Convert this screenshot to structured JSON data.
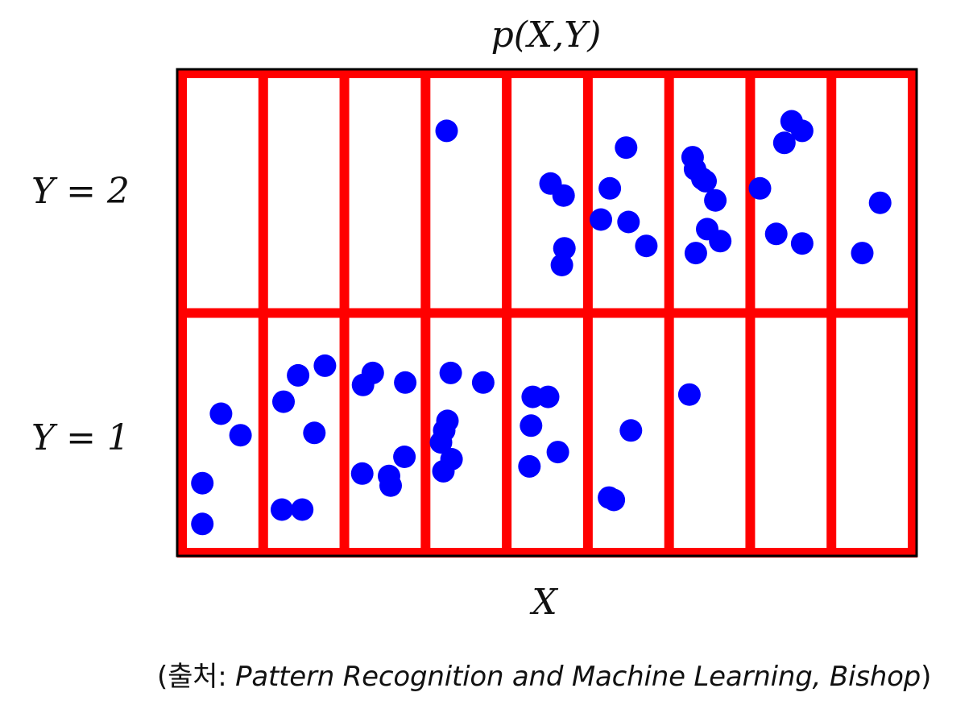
{
  "title": "p(X,Y)",
  "x_label": "X",
  "row_labels": [
    "Y = 2",
    "Y = 1"
  ],
  "caption": {
    "open": "(",
    "prefix": "출처: ",
    "source": "Pattern Recognition and Machine Learning, Bishop",
    "close": ")"
  },
  "colors": {
    "grid": "#ff0000",
    "points": "#0000ff",
    "frame": "#000000"
  },
  "grid": {
    "columns": 9,
    "rows": 2
  },
  "points": [
    {
      "x": 0.48,
      "y": 1.58
    },
    {
      "x": 0.25,
      "y": 1.29
    },
    {
      "x": 0.72,
      "y": 1.49
    },
    {
      "x": 0.25,
      "y": 1.12
    },
    {
      "x": 1.43,
      "y": 1.74
    },
    {
      "x": 1.76,
      "y": 1.78
    },
    {
      "x": 1.25,
      "y": 1.63
    },
    {
      "x": 1.63,
      "y": 1.5
    },
    {
      "x": 1.23,
      "y": 1.18
    },
    {
      "x": 1.48,
      "y": 1.18
    },
    {
      "x": 2.35,
      "y": 1.75
    },
    {
      "x": 2.23,
      "y": 1.7
    },
    {
      "x": 2.75,
      "y": 1.71
    },
    {
      "x": 2.74,
      "y": 1.4
    },
    {
      "x": 2.22,
      "y": 1.33
    },
    {
      "x": 2.55,
      "y": 1.32
    },
    {
      "x": 2.57,
      "y": 1.28
    },
    {
      "x": 3.31,
      "y": 1.75
    },
    {
      "x": 3.71,
      "y": 1.71
    },
    {
      "x": 3.27,
      "y": 1.55
    },
    {
      "x": 3.23,
      "y": 1.51
    },
    {
      "x": 3.19,
      "y": 1.46
    },
    {
      "x": 3.32,
      "y": 1.39
    },
    {
      "x": 3.22,
      "y": 1.34
    },
    {
      "x": 4.32,
      "y": 1.65
    },
    {
      "x": 4.51,
      "y": 1.65
    },
    {
      "x": 4.3,
      "y": 1.53
    },
    {
      "x": 4.63,
      "y": 1.42
    },
    {
      "x": 4.28,
      "y": 1.36
    },
    {
      "x": 5.53,
      "y": 1.51
    },
    {
      "x": 5.26,
      "y": 1.23
    },
    {
      "x": 5.32,
      "y": 1.22
    },
    {
      "x": 6.25,
      "y": 1.66
    },
    {
      "x": 3.26,
      "y": 2.76
    },
    {
      "x": 4.54,
      "y": 2.54
    },
    {
      "x": 4.7,
      "y": 2.49
    },
    {
      "x": 4.71,
      "y": 2.27
    },
    {
      "x": 4.68,
      "y": 2.2
    },
    {
      "x": 5.47,
      "y": 2.69
    },
    {
      "x": 5.27,
      "y": 2.52
    },
    {
      "x": 5.16,
      "y": 2.39
    },
    {
      "x": 5.5,
      "y": 2.38
    },
    {
      "x": 5.72,
      "y": 2.28
    },
    {
      "x": 6.29,
      "y": 2.65
    },
    {
      "x": 6.32,
      "y": 2.6
    },
    {
      "x": 6.41,
      "y": 2.56
    },
    {
      "x": 6.45,
      "y": 2.55
    },
    {
      "x": 6.57,
      "y": 2.47
    },
    {
      "x": 6.47,
      "y": 2.35
    },
    {
      "x": 6.63,
      "y": 2.3
    },
    {
      "x": 6.33,
      "y": 2.25
    },
    {
      "x": 7.12,
      "y": 2.52
    },
    {
      "x": 7.51,
      "y": 2.8
    },
    {
      "x": 7.64,
      "y": 2.76
    },
    {
      "x": 7.42,
      "y": 2.71
    },
    {
      "x": 7.32,
      "y": 2.33
    },
    {
      "x": 7.64,
      "y": 2.29
    },
    {
      "x": 8.6,
      "y": 2.46
    },
    {
      "x": 8.38,
      "y": 2.25
    }
  ]
}
